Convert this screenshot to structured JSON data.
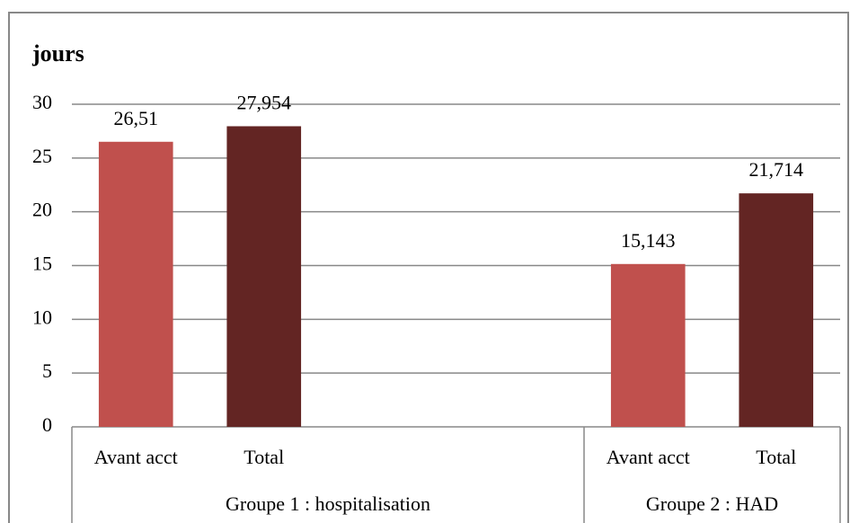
{
  "chart_data": {
    "type": "bar",
    "y_label": "jours",
    "categories": [
      "Avant acct",
      "Total",
      null,
      null,
      "Avant acct",
      "Total"
    ],
    "groups": [
      {
        "label": "Groupe 1 : hospitalisation",
        "size": 4
      },
      {
        "label": "Groupe 2 : HAD",
        "size": 2
      }
    ],
    "values": [
      26.51,
      27.954,
      null,
      null,
      15.143,
      21.714
    ],
    "value_labels": [
      "26,51",
      "27,954",
      null,
      null,
      "15,143",
      "21,714"
    ],
    "colors": [
      "#c0504d",
      "#632523",
      null,
      null,
      "#c0504d",
      "#632523"
    ],
    "ylim": [
      0,
      30
    ],
    "yticks": [
      0,
      5,
      10,
      15,
      20,
      25,
      30
    ],
    "grid": true
  }
}
